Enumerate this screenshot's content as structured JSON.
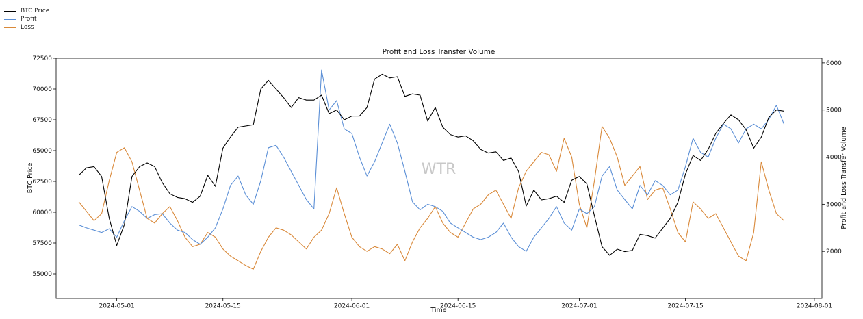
{
  "chart_data": {
    "type": "line",
    "title": "Profit and Loss Transfer Volume",
    "xlabel": "Time",
    "ylabel_left": "BTC Price",
    "ylabel_right": "Profit and Loss Transfer Volume",
    "watermark": "WTR",
    "legend_position": "top-left outside",
    "grid": false,
    "xlim": [
      "2024-04-23",
      "2024-08-02"
    ],
    "ylim_left": [
      53000,
      72500
    ],
    "ylim_right": [
      1000,
      6100
    ],
    "x_ticks": [
      "2024-05-01",
      "2024-05-15",
      "2024-06-01",
      "2024-06-15",
      "2024-07-01",
      "2024-07-15",
      "2024-08-01"
    ],
    "y_ticks_left": [
      55000,
      57500,
      60000,
      62500,
      65000,
      67500,
      70000,
      72500
    ],
    "y_ticks_right": [
      2000,
      3000,
      4000,
      5000,
      6000
    ],
    "series": [
      {
        "name": "BTC Price",
        "axis": "left",
        "color": "#000000",
        "x": [
          "2024-04-26",
          "2024-04-27",
          "2024-04-28",
          "2024-04-29",
          "2024-04-30",
          "2024-05-01",
          "2024-05-02",
          "2024-05-03",
          "2024-05-04",
          "2024-05-05",
          "2024-05-06",
          "2024-05-07",
          "2024-05-08",
          "2024-05-09",
          "2024-05-10",
          "2024-05-11",
          "2024-05-12",
          "2024-05-13",
          "2024-05-14",
          "2024-05-15",
          "2024-05-16",
          "2024-05-17",
          "2024-05-18",
          "2024-05-19",
          "2024-05-20",
          "2024-05-21",
          "2024-05-22",
          "2024-05-23",
          "2024-05-24",
          "2024-05-25",
          "2024-05-26",
          "2024-05-27",
          "2024-05-28",
          "2024-05-29",
          "2024-05-30",
          "2024-05-31",
          "2024-06-01",
          "2024-06-02",
          "2024-06-03",
          "2024-06-04",
          "2024-06-05",
          "2024-06-06",
          "2024-06-07",
          "2024-06-08",
          "2024-06-09",
          "2024-06-10",
          "2024-06-11",
          "2024-06-12",
          "2024-06-13",
          "2024-06-14",
          "2024-06-15",
          "2024-06-16",
          "2024-06-17",
          "2024-06-18",
          "2024-06-19",
          "2024-06-20",
          "2024-06-21",
          "2024-06-22",
          "2024-06-23",
          "2024-06-24",
          "2024-06-25",
          "2024-06-26",
          "2024-06-27",
          "2024-06-28",
          "2024-06-29",
          "2024-06-30",
          "2024-07-01",
          "2024-07-02",
          "2024-07-03",
          "2024-07-04",
          "2024-07-05",
          "2024-07-06",
          "2024-07-07",
          "2024-07-08",
          "2024-07-09",
          "2024-07-10",
          "2024-07-11",
          "2024-07-12",
          "2024-07-13",
          "2024-07-14",
          "2024-07-15",
          "2024-07-16",
          "2024-07-17",
          "2024-07-18",
          "2024-07-19",
          "2024-07-20",
          "2024-07-21",
          "2024-07-22",
          "2024-07-23",
          "2024-07-24",
          "2024-07-25",
          "2024-07-26",
          "2024-07-27",
          "2024-07-28"
        ],
        "values": [
          63000,
          63600,
          63700,
          62900,
          59500,
          57300,
          59000,
          62900,
          63700,
          64000,
          63700,
          62400,
          61500,
          61200,
          61100,
          60800,
          61300,
          63000,
          62100,
          65200,
          66100,
          66900,
          67000,
          67100,
          70000,
          70700,
          70000,
          69300,
          68500,
          69300,
          69100,
          69100,
          69500,
          68000,
          68300,
          67500,
          67800,
          67800,
          68500,
          70800,
          71200,
          70900,
          71000,
          69400,
          69600,
          69500,
          67400,
          68500,
          66900,
          66300,
          66100,
          66200,
          65800,
          65100,
          64800,
          64900,
          64200,
          64400,
          63300,
          60500,
          61800,
          61000,
          61100,
          61300,
          60800,
          62600,
          62900,
          62300,
          59700,
          57200,
          56500,
          57000,
          56800,
          56900,
          58200,
          58100,
          57900,
          58700,
          59500,
          60800,
          63100,
          64600,
          64200,
          65100,
          66400,
          67200,
          67900,
          67500,
          66700,
          65200,
          66100,
          67700,
          68300,
          68200
        ],
        "right_axis_values": null
      },
      {
        "name": "Profit",
        "axis": "right",
        "color": "#5b8fd6",
        "x": [
          "2024-04-26",
          "2024-04-27",
          "2024-04-28",
          "2024-04-29",
          "2024-04-30",
          "2024-05-01",
          "2024-05-02",
          "2024-05-03",
          "2024-05-04",
          "2024-05-05",
          "2024-05-06",
          "2024-05-07",
          "2024-05-08",
          "2024-05-09",
          "2024-05-10",
          "2024-05-11",
          "2024-05-12",
          "2024-05-13",
          "2024-05-14",
          "2024-05-15",
          "2024-05-16",
          "2024-05-17",
          "2024-05-18",
          "2024-05-19",
          "2024-05-20",
          "2024-05-21",
          "2024-05-22",
          "2024-05-23",
          "2024-05-24",
          "2024-05-25",
          "2024-05-26",
          "2024-05-27",
          "2024-05-28",
          "2024-05-29",
          "2024-05-30",
          "2024-05-31",
          "2024-06-01",
          "2024-06-02",
          "2024-06-03",
          "2024-06-04",
          "2024-06-05",
          "2024-06-06",
          "2024-06-07",
          "2024-06-08",
          "2024-06-09",
          "2024-06-10",
          "2024-06-11",
          "2024-06-12",
          "2024-06-13",
          "2024-06-14",
          "2024-06-15",
          "2024-06-16",
          "2024-06-17",
          "2024-06-18",
          "2024-06-19",
          "2024-06-20",
          "2024-06-21",
          "2024-06-22",
          "2024-06-23",
          "2024-06-24",
          "2024-06-25",
          "2024-06-26",
          "2024-06-27",
          "2024-06-28",
          "2024-06-29",
          "2024-06-30",
          "2024-07-01",
          "2024-07-02",
          "2024-07-03",
          "2024-07-04",
          "2024-07-05",
          "2024-07-06",
          "2024-07-07",
          "2024-07-08",
          "2024-07-09",
          "2024-07-10",
          "2024-07-11",
          "2024-07-12",
          "2024-07-13",
          "2024-07-14",
          "2024-07-15",
          "2024-07-16",
          "2024-07-17",
          "2024-07-18",
          "2024-07-19",
          "2024-07-20",
          "2024-07-21",
          "2024-07-22",
          "2024-07-23",
          "2024-07-24",
          "2024-07-25",
          "2024-07-26",
          "2024-07-27",
          "2024-07-28"
        ],
        "values": [
          2560,
          2500,
          2450,
          2400,
          2480,
          2300,
          2650,
          2950,
          2850,
          2700,
          2780,
          2800,
          2600,
          2450,
          2400,
          2250,
          2150,
          2300,
          2500,
          2900,
          3400,
          3600,
          3200,
          3000,
          3500,
          4200,
          4250,
          4000,
          3700,
          3400,
          3100,
          2900,
          5850,
          5000,
          5200,
          4600,
          4500,
          4000,
          3600,
          3900,
          4300,
          4700,
          4300,
          3700,
          3050,
          2880,
          3000,
          2950,
          2850,
          2600,
          2500,
          2400,
          2300,
          2250,
          2300,
          2400,
          2600,
          2300,
          2100,
          2000,
          2300,
          2500,
          2700,
          2950,
          2600,
          2450,
          2900,
          2800,
          2950,
          3600,
          3800,
          3300,
          3100,
          2900,
          3400,
          3200,
          3500,
          3400,
          3200,
          3300,
          3800,
          4400,
          4100,
          4000,
          4400,
          4700,
          4600,
          4300,
          4600,
          4700,
          4600,
          4800,
          5100,
          4700
        ],
        "right_axis_values": null
      },
      {
        "name": "Loss",
        "axis": "right",
        "color": "#d9893a",
        "x": [
          "2024-04-26",
          "2024-04-27",
          "2024-04-28",
          "2024-04-29",
          "2024-04-30",
          "2024-05-01",
          "2024-05-02",
          "2024-05-03",
          "2024-05-04",
          "2024-05-05",
          "2024-05-06",
          "2024-05-07",
          "2024-05-08",
          "2024-05-09",
          "2024-05-10",
          "2024-05-11",
          "2024-05-12",
          "2024-05-13",
          "2024-05-14",
          "2024-05-15",
          "2024-05-16",
          "2024-05-17",
          "2024-05-18",
          "2024-05-19",
          "2024-05-20",
          "2024-05-21",
          "2024-05-22",
          "2024-05-23",
          "2024-05-24",
          "2024-05-25",
          "2024-05-26",
          "2024-05-27",
          "2024-05-28",
          "2024-05-29",
          "2024-05-30",
          "2024-05-31",
          "2024-06-01",
          "2024-06-02",
          "2024-06-03",
          "2024-06-04",
          "2024-06-05",
          "2024-06-06",
          "2024-06-07",
          "2024-06-08",
          "2024-06-09",
          "2024-06-10",
          "2024-06-11",
          "2024-06-12",
          "2024-06-13",
          "2024-06-14",
          "2024-06-15",
          "2024-06-16",
          "2024-06-17",
          "2024-06-18",
          "2024-06-19",
          "2024-06-20",
          "2024-06-21",
          "2024-06-22",
          "2024-06-23",
          "2024-06-24",
          "2024-06-25",
          "2024-06-26",
          "2024-06-27",
          "2024-06-28",
          "2024-06-29",
          "2024-06-30",
          "2024-07-01",
          "2024-07-02",
          "2024-07-03",
          "2024-07-04",
          "2024-07-05",
          "2024-07-06",
          "2024-07-07",
          "2024-07-08",
          "2024-07-09",
          "2024-07-10",
          "2024-07-11",
          "2024-07-12",
          "2024-07-13",
          "2024-07-14",
          "2024-07-15",
          "2024-07-16",
          "2024-07-17",
          "2024-07-18",
          "2024-07-19",
          "2024-07-20",
          "2024-07-21",
          "2024-07-22",
          "2024-07-23",
          "2024-07-24",
          "2024-07-25",
          "2024-07-26",
          "2024-07-27",
          "2024-07-28"
        ],
        "values": [
          3050,
          2850,
          2650,
          2800,
          3500,
          4100,
          4200,
          3900,
          3300,
          2700,
          2600,
          2800,
          2950,
          2650,
          2300,
          2100,
          2150,
          2400,
          2300,
          2050,
          1900,
          1800,
          1700,
          1620,
          2000,
          2300,
          2500,
          2450,
          2350,
          2200,
          2050,
          2300,
          2450,
          2800,
          3350,
          2800,
          2300,
          2100,
          2000,
          2100,
          2050,
          1950,
          2150,
          1800,
          2200,
          2500,
          2700,
          2950,
          2600,
          2400,
          2300,
          2600,
          2900,
          3000,
          3200,
          3300,
          3000,
          2700,
          3350,
          3700,
          3900,
          4100,
          4050,
          3700,
          4400,
          4000,
          3000,
          2500,
          3500,
          4650,
          4400,
          4000,
          3400,
          3600,
          3800,
          3100,
          3300,
          3350,
          2900,
          2400,
          2200,
          3050,
          2900,
          2700,
          2800,
          2500,
          2200,
          1900,
          1800,
          2400,
          3900,
          3300,
          2800,
          2650
        ],
        "right_axis_values": null
      }
    ]
  }
}
